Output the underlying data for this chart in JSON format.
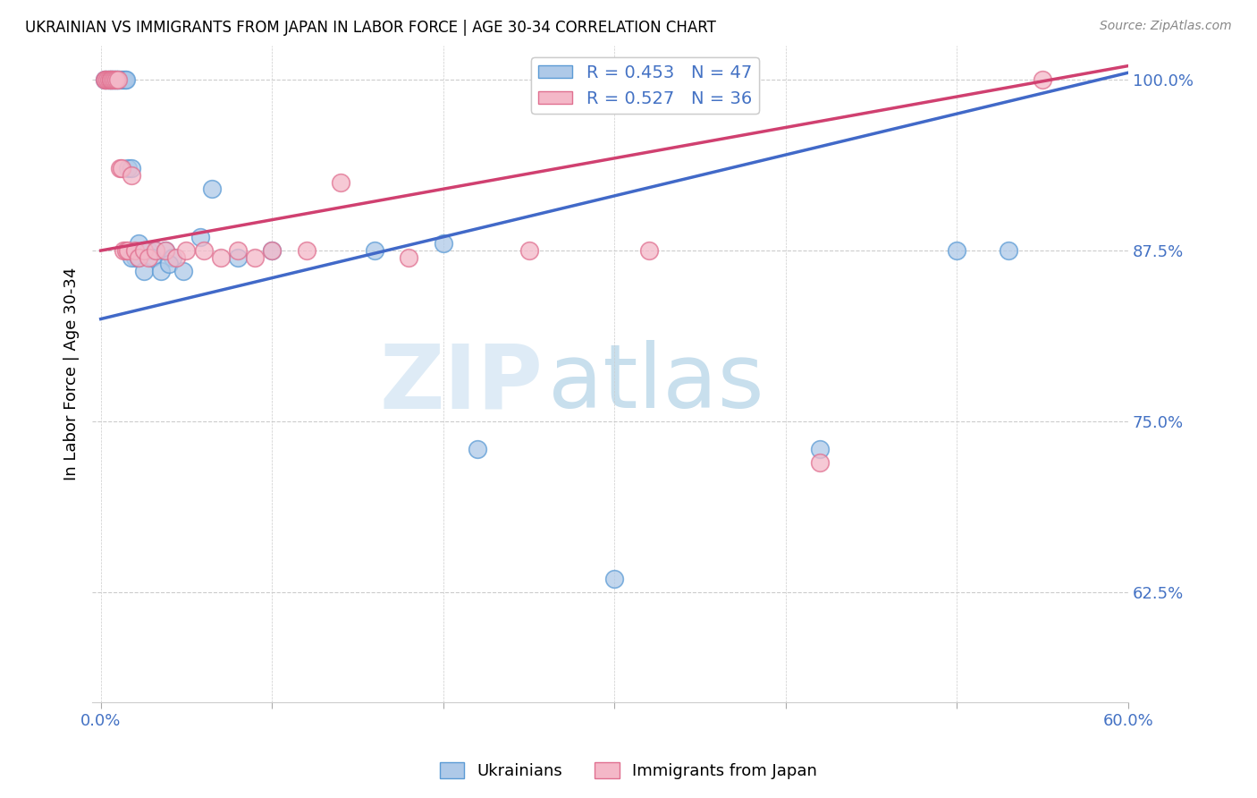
{
  "title": "UKRAINIAN VS IMMIGRANTS FROM JAPAN IN LABOR FORCE | AGE 30-34 CORRELATION CHART",
  "source": "Source: ZipAtlas.com",
  "ylabel": "In Labor Force | Age 30-34",
  "xlim": [
    -0.005,
    0.6
  ],
  "ylim": [
    0.545,
    1.025
  ],
  "xticks": [
    0.0,
    0.1,
    0.2,
    0.3,
    0.4,
    0.5,
    0.6
  ],
  "xticklabels": [
    "0.0%",
    "",
    "",
    "",
    "",
    "",
    "60.0%"
  ],
  "yticks": [
    0.625,
    0.75,
    0.875,
    1.0
  ],
  "yticklabels": [
    "62.5%",
    "75.0%",
    "87.5%",
    "100.0%"
  ],
  "blue_fill": "#aec9e8",
  "blue_edge": "#5b9bd5",
  "pink_fill": "#f4b8c8",
  "pink_edge": "#e07090",
  "blue_line_color": "#4169C8",
  "pink_line_color": "#D04070",
  "R_blue": 0.453,
  "N_blue": 47,
  "R_pink": 0.527,
  "N_pink": 36,
  "blue_trend_x0": 0.0,
  "blue_trend_y0": 0.825,
  "blue_trend_x1": 0.6,
  "blue_trend_y1": 1.005,
  "pink_trend_x0": 0.0,
  "pink_trend_y0": 0.875,
  "pink_trend_x1": 0.6,
  "pink_trend_y1": 1.01,
  "blue_x": [
    0.002,
    0.003,
    0.004,
    0.005,
    0.005,
    0.006,
    0.006,
    0.007,
    0.007,
    0.008,
    0.008,
    0.009,
    0.009,
    0.01,
    0.01,
    0.011,
    0.012,
    0.013,
    0.014,
    0.015,
    0.016,
    0.018,
    0.02,
    0.022,
    0.025,
    0.028,
    0.032,
    0.038,
    0.042,
    0.018,
    0.022,
    0.025,
    0.03,
    0.035,
    0.04,
    0.048,
    0.058,
    0.065,
    0.08,
    0.1,
    0.16,
    0.2,
    0.22,
    0.3,
    0.42,
    0.5,
    0.53
  ],
  "blue_y": [
    1.0,
    1.0,
    1.0,
    1.0,
    1.0,
    1.0,
    1.0,
    1.0,
    1.0,
    1.0,
    1.0,
    1.0,
    1.0,
    1.0,
    1.0,
    1.0,
    1.0,
    1.0,
    1.0,
    1.0,
    0.935,
    0.935,
    0.87,
    0.88,
    0.875,
    0.875,
    0.875,
    0.875,
    0.87,
    0.87,
    0.87,
    0.86,
    0.87,
    0.86,
    0.865,
    0.86,
    0.885,
    0.92,
    0.87,
    0.875,
    0.875,
    0.88,
    0.73,
    0.635,
    0.73,
    0.875,
    0.875
  ],
  "pink_x": [
    0.002,
    0.003,
    0.004,
    0.005,
    0.006,
    0.006,
    0.007,
    0.008,
    0.009,
    0.01,
    0.011,
    0.012,
    0.013,
    0.015,
    0.016,
    0.018,
    0.02,
    0.022,
    0.025,
    0.028,
    0.032,
    0.038,
    0.044,
    0.05,
    0.06,
    0.07,
    0.08,
    0.09,
    0.1,
    0.12,
    0.14,
    0.18,
    0.25,
    0.32,
    0.42,
    0.55
  ],
  "pink_y": [
    1.0,
    1.0,
    1.0,
    1.0,
    1.0,
    1.0,
    1.0,
    1.0,
    1.0,
    1.0,
    0.935,
    0.935,
    0.875,
    0.875,
    0.875,
    0.93,
    0.875,
    0.87,
    0.875,
    0.87,
    0.875,
    0.875,
    0.87,
    0.875,
    0.875,
    0.87,
    0.875,
    0.87,
    0.875,
    0.875,
    0.925,
    0.87,
    0.875,
    0.875,
    0.72,
    1.0
  ],
  "watermark_zip": "ZIP",
  "watermark_atlas": "atlas"
}
